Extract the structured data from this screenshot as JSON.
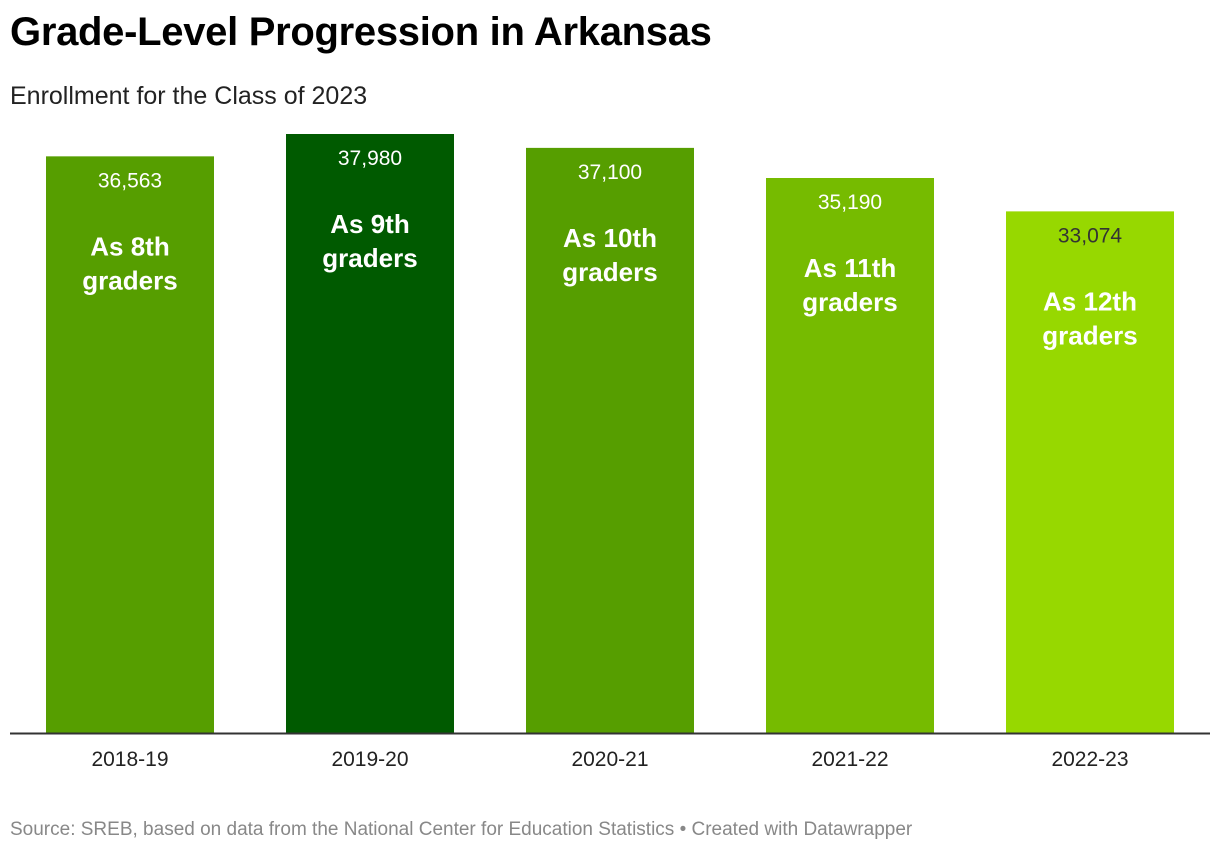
{
  "title": "Grade-Level Progression in Arkansas",
  "subtitle": "Enrollment for the Class of 2023",
  "source": "Source: SREB, based on data from the National Center for Education Statistics • Created with Datawrapper",
  "chart_data": {
    "type": "bar",
    "categories": [
      "2018-19",
      "2019-20",
      "2020-21",
      "2021-22",
      "2022-23"
    ],
    "values": [
      36563,
      37980,
      37100,
      35190,
      33074
    ],
    "value_labels": [
      "36,563",
      "37,980",
      "37,100",
      "35,190",
      "33,074"
    ],
    "bar_annotations": [
      [
        "As 8th",
        "graders"
      ],
      [
        "As 9th",
        "graders"
      ],
      [
        "As 10th",
        "graders"
      ],
      [
        "As 11th",
        "graders"
      ],
      [
        "As 12th",
        "graders"
      ]
    ],
    "colors": [
      "#569e00",
      "#005a00",
      "#569e00",
      "#76bb00",
      "#97d800"
    ],
    "value_label_colors": [
      "#ffffff",
      "#ffffff",
      "#ffffff",
      "#ffffff",
      "#333333"
    ],
    "ylim": [
      0,
      37980
    ],
    "grid": false,
    "legend": "none"
  }
}
